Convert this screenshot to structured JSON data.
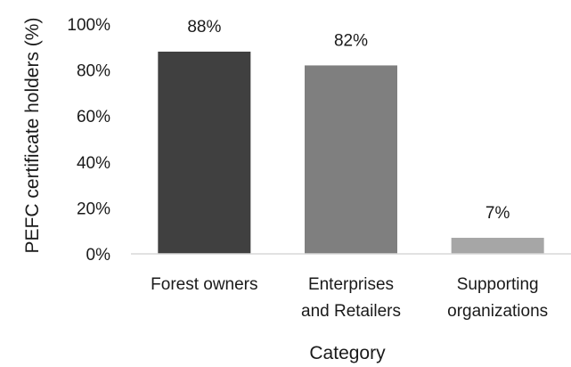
{
  "chart_data": {
    "type": "bar",
    "title": "",
    "xlabel": "Category",
    "ylabel": "PEFC certificate holders (%)",
    "categories": [
      [
        "Forest owners"
      ],
      [
        "Enterprises",
        "and Retailers"
      ],
      [
        "Supporting",
        "organizations"
      ]
    ],
    "values": [
      88,
      82,
      7
    ],
    "data_labels": [
      "88%",
      "82%",
      "7%"
    ],
    "bar_colors": [
      "#404040",
      "#7f7f7f",
      "#a6a6a6"
    ],
    "ylim": [
      0,
      100
    ],
    "yticks": [
      0,
      20,
      40,
      60,
      80,
      100
    ],
    "ytick_labels": [
      "0%",
      "20%",
      "40%",
      "60%",
      "80%",
      "100%"
    ],
    "grid": false,
    "legend": "none"
  }
}
